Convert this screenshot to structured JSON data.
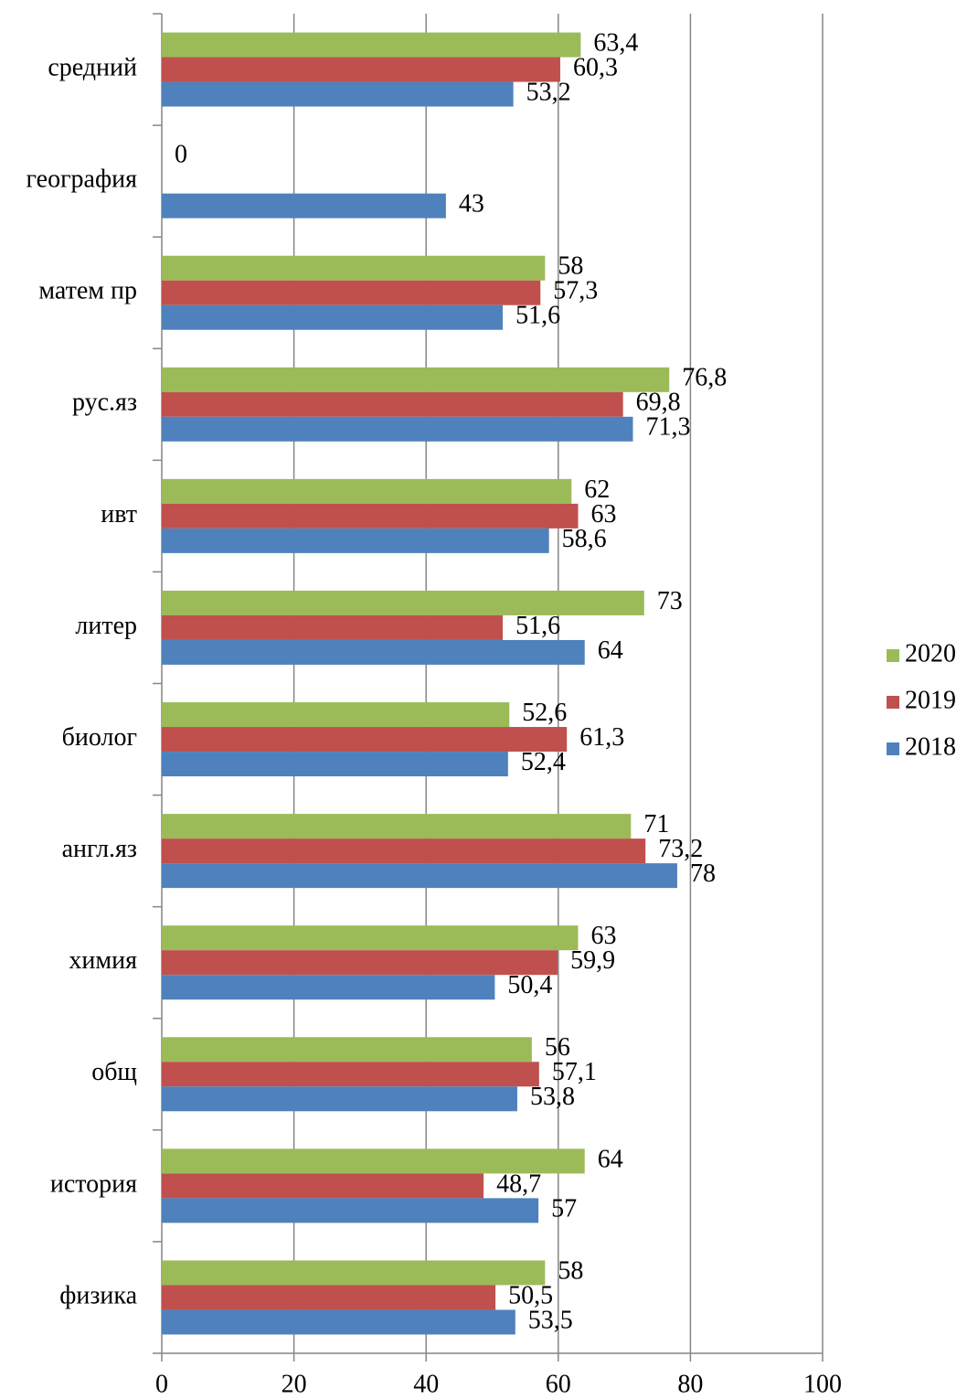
{
  "chart_data": {
    "type": "hbar",
    "categories": [
      "средний",
      "география",
      "матем пр",
      "рус.яз",
      "ивт",
      "литер",
      "биолог",
      "англ.яз",
      "химия",
      "общ",
      "история",
      "физика"
    ],
    "series": [
      {
        "name": "2020",
        "color": "#9bbb59",
        "values": [
          63.4,
          0,
          58,
          76.8,
          62,
          73,
          52.6,
          71,
          63,
          56,
          64,
          58
        ],
        "value_labels": [
          "63,4",
          "0",
          "58",
          "76,8",
          "62",
          "73",
          "52,6",
          "71",
          "63",
          "56",
          "64",
          "58"
        ]
      },
      {
        "name": "2019",
        "color": "#c0504d",
        "values": [
          60.3,
          null,
          57.3,
          69.8,
          63,
          51.6,
          61.3,
          73.2,
          59.9,
          57.1,
          48.7,
          50.5
        ],
        "value_labels": [
          "60,3",
          null,
          "57,3",
          "69,8",
          "63",
          "51,6",
          "61,3",
          "73,2",
          "59,9",
          "57,1",
          "48,7",
          "50,5"
        ]
      },
      {
        "name": "2018",
        "color": "#4f81bd",
        "values": [
          53.2,
          43,
          51.6,
          71.3,
          58.6,
          64,
          52.4,
          78,
          50.4,
          53.8,
          57,
          53.5
        ],
        "value_labels": [
          "53,2",
          "43",
          "51,6",
          "71,3",
          "58,6",
          "64",
          "52,4",
          "78",
          "50,4",
          "53,8",
          "57",
          "53,5"
        ]
      }
    ],
    "xlim": [
      0,
      100
    ],
    "xticks": [
      0,
      20,
      40,
      60,
      80,
      100
    ],
    "grid": true,
    "legend": "right"
  }
}
